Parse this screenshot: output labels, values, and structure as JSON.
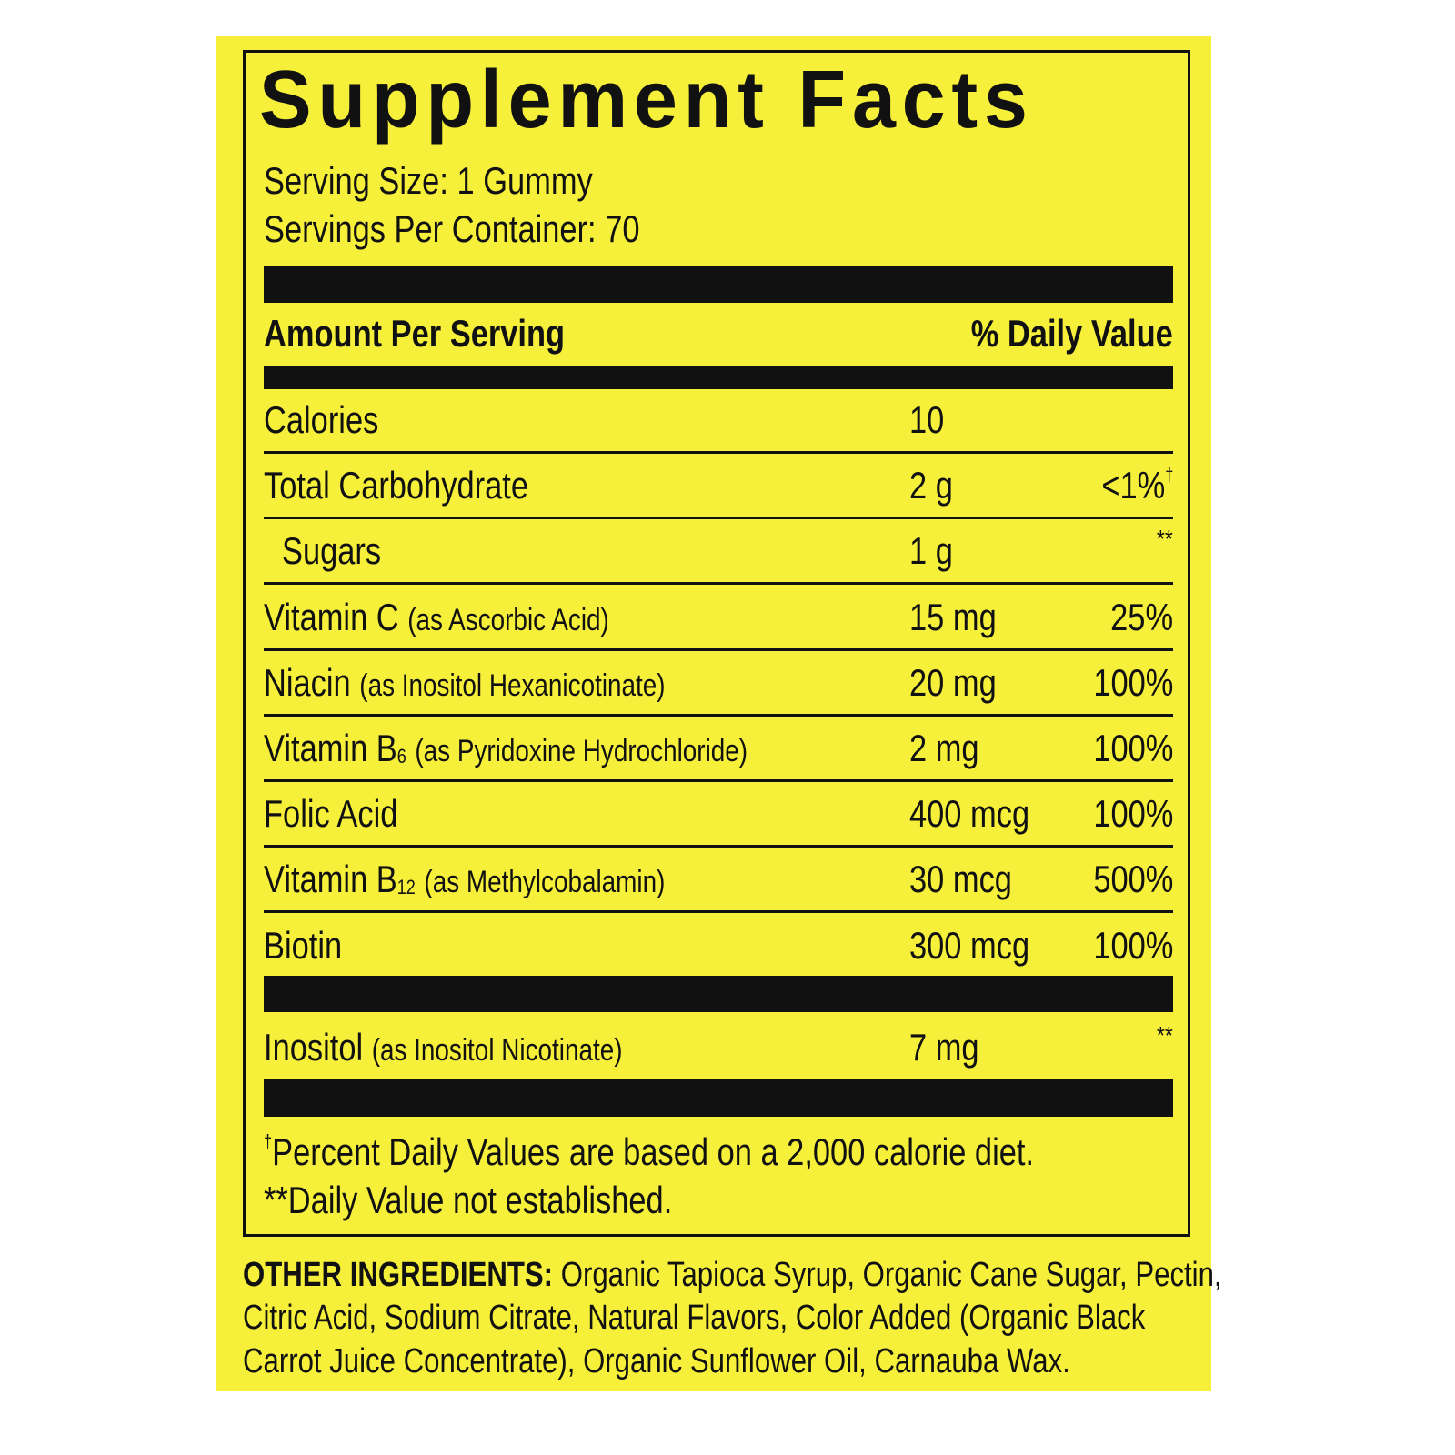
{
  "title": "Supplement Facts",
  "serving_size": "Serving Size: 1 Gummy",
  "servings_per_container": "Servings Per Container: 70",
  "header": {
    "amount": "Amount Per Serving",
    "daily_value": "% Daily Value"
  },
  "rows": [
    {
      "name": "Calories",
      "amount": "10"
    },
    {
      "name": "Total Carbohydrate",
      "amount": "2 g",
      "dv": "<1%",
      "dv_mark": "†"
    },
    {
      "name": "Sugars",
      "amount": "1 g",
      "dv": "**",
      "indent": true
    },
    {
      "name": "Vitamin C",
      "detail": "(as Ascorbic Acid)",
      "amount": "15 mg",
      "dv": "25%"
    },
    {
      "name": "Niacin",
      "detail": "(as Inositol Hexanicotinate)",
      "amount": "20 mg",
      "dv": "100%"
    },
    {
      "name": "Vitamin B",
      "sub": "6",
      "detail": "(as Pyridoxine Hydrochloride)",
      "amount": "2 mg",
      "dv": "100%"
    },
    {
      "name": "Folic Acid",
      "amount": "400 mcg",
      "dv": "100%"
    },
    {
      "name": "Vitamin B",
      "sub": "12",
      "detail": "(as Methylcobalamin)",
      "amount": "30 mcg",
      "dv": "500%"
    },
    {
      "name": "Biotin",
      "amount": "300 mcg",
      "dv": "100%"
    }
  ],
  "other_rows": [
    {
      "name": "Inositol",
      "detail": "(as Inositol Nicotinate)",
      "amount": "7 mg",
      "dv": "**"
    }
  ],
  "footnotes": [
    {
      "mark": "†",
      "text": "Percent Daily Values are based on a 2,000 calorie diet."
    },
    {
      "text": "**Daily Value not established."
    }
  ],
  "other_ingredients": {
    "label": "OTHER INGREDIENTS:",
    "lines": [
      " Organic Tapioca Syrup, Organic Cane Sugar, Pectin,",
      "Citric Acid, Sodium Citrate, Natural Flavors, Color Added (Organic Black",
      "Carrot Juice Concentrate), Organic Sunflower Oil, Carnauba Wax."
    ]
  }
}
